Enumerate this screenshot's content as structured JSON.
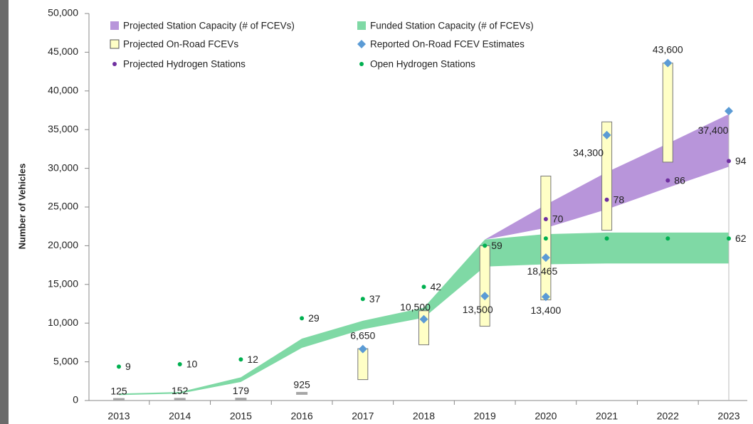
{
  "chart_data": {
    "type": "band-range",
    "y_label": "Number of Vehicles",
    "categories": [
      "2013",
      "2014",
      "2015",
      "2016",
      "2017",
      "2018",
      "2019",
      "2020",
      "2021",
      "2022",
      "2023"
    ],
    "ylim": [
      0,
      50000
    ],
    "yticks": [
      0,
      {
        "value": 5000,
        "label": "5,000"
      },
      {
        "value": 10000,
        "label": "10,000"
      },
      {
        "value": 15000,
        "label": "15,000"
      },
      {
        "value": 20000,
        "label": "20,000"
      },
      {
        "value": 25000,
        "label": "25,000"
      },
      {
        "value": 30000,
        "label": "30,000"
      },
      {
        "value": 35000,
        "label": "35,000"
      },
      {
        "value": 40000,
        "label": "40,000"
      },
      {
        "value": 45000,
        "label": "45,000"
      },
      {
        "value": 50000,
        "label": "50,000"
      }
    ],
    "y2lim": [
      -5,
      155
    ],
    "projected_capacity": {
      "name": "Projected Station Capacity (# of FCEVs)",
      "color": "#b895da",
      "x": [
        2019,
        2020,
        2021,
        2022,
        2023
      ],
      "low": [
        20800,
        22300,
        24700,
        27500,
        30200
      ],
      "high": [
        20800,
        25300,
        29500,
        33200,
        37000
      ]
    },
    "funded_capacity": {
      "name": "Funded Station Capacity (# of FCEVs)",
      "color": "#7fd9a5",
      "x": [
        2013,
        2014,
        2015,
        2016,
        2017,
        2018,
        2019,
        2020,
        2021,
        2022,
        2023
      ],
      "low": [
        700,
        900,
        2400,
        6800,
        9200,
        10700,
        17300,
        17600,
        17700,
        17700,
        17700
      ],
      "high": [
        900,
        1100,
        3000,
        8000,
        10300,
        12000,
        20800,
        21500,
        21700,
        21700,
        21700
      ]
    },
    "projected_onroad": {
      "name": "Projected On-Road FCEVs",
      "color": "#ffffc6",
      "x": [
        2017,
        2018,
        2019,
        2020,
        2021,
        2022
      ],
      "low": [
        2700,
        7200,
        9600,
        13000,
        22000,
        30800
      ],
      "high": [
        6700,
        11600,
        20000,
        29000,
        36000,
        43600
      ]
    },
    "reported_onroad": {
      "name": "Reported On-Road FCEV Estimates",
      "color": "#5b9bd5",
      "x": [
        2017,
        2018,
        2019,
        2020,
        2020,
        2021,
        2022,
        2023
      ],
      "values": [
        6650,
        10500,
        13500,
        18465,
        13400,
        34300,
        43600,
        37400
      ],
      "value_labels": [
        "6,650",
        "10,500",
        "13,500",
        "18,465",
        "13,400",
        "34,300",
        "43,600",
        "37,400"
      ]
    },
    "early_onroad": {
      "color": "#a6a6a6",
      "x": [
        2013,
        2014,
        2015,
        2016
      ],
      "values": [
        125,
        152,
        179,
        925
      ]
    },
    "projected_stations": {
      "name": "Projected Hydrogen Stations",
      "color": "#7030a0",
      "axis": "y2",
      "x": [
        2020,
        2021,
        2022,
        2023
      ],
      "values": [
        70,
        78,
        86,
        94
      ]
    },
    "open_stations": {
      "name": "Open Hydrogen Stations",
      "color": "#00b050",
      "axis": "y2",
      "x": [
        2013,
        2014,
        2015,
        2016,
        2017,
        2018,
        2019,
        2020,
        2021,
        2022,
        2023
      ],
      "values": [
        9,
        10,
        12,
        29,
        37,
        42,
        59,
        62,
        62,
        62,
        62
      ],
      "value_labels": [
        "9",
        "10",
        "12",
        "29",
        "37",
        "42",
        "59",
        null,
        null,
        null,
        "62"
      ]
    }
  }
}
